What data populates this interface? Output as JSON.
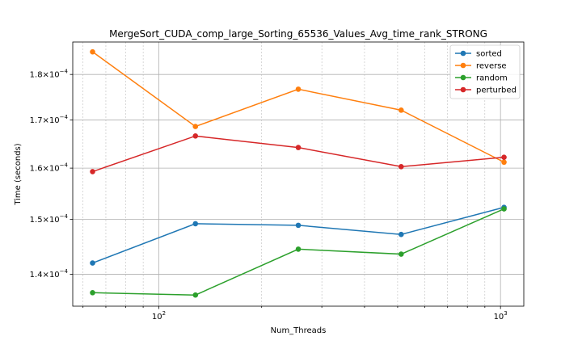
{
  "chart_data": {
    "type": "line",
    "title": "MergeSort_CUDA_comp_large_Sorting_65536_Values_Avg_time_rank_STRONG",
    "xlabel": "Num_Threads",
    "ylabel": "Time (seconds)",
    "xscale": "log",
    "yscale": "log",
    "xlim": [
      56,
      1170
    ],
    "ylim": [
      0.0001345,
      0.0001875
    ],
    "grid": true,
    "legend_position": "top-right",
    "x": [
      64,
      128,
      256,
      512,
      1024
    ],
    "x_ticks": [
      {
        "value": 100,
        "base": "10",
        "exp": "2"
      },
      {
        "value": 1000,
        "base": "10",
        "exp": "3"
      }
    ],
    "y_ticks": [
      {
        "value": 0.00014,
        "mant": "1.4",
        "base": "10",
        "exp": "−4"
      },
      {
        "value": 0.00015,
        "mant": "1.5",
        "base": "10",
        "exp": "−4"
      },
      {
        "value": 0.00016,
        "mant": "1.6",
        "base": "10",
        "exp": "−4"
      },
      {
        "value": 0.00017,
        "mant": "1.7",
        "base": "10",
        "exp": "−4"
      },
      {
        "value": 0.00018,
        "mant": "1.8",
        "base": "10",
        "exp": "−4"
      }
    ],
    "series": [
      {
        "name": "sorted",
        "color": "#1f77b4",
        "values": [
          0.000142,
          0.0001492,
          0.0001489,
          0.0001472,
          0.0001523
        ]
      },
      {
        "name": "reverse",
        "color": "#ff7f0e",
        "values": [
          0.0001852,
          0.0001686,
          0.0001767,
          0.0001721,
          0.0001612
        ]
      },
      {
        "name": "random",
        "color": "#2ca02c",
        "values": [
          0.0001368,
          0.0001364,
          0.0001445,
          0.0001436,
          0.000152
        ]
      },
      {
        "name": "perturbed",
        "color": "#d62728",
        "values": [
          0.0001593,
          0.0001666,
          0.0001642,
          0.0001603,
          0.0001622
        ]
      }
    ]
  }
}
